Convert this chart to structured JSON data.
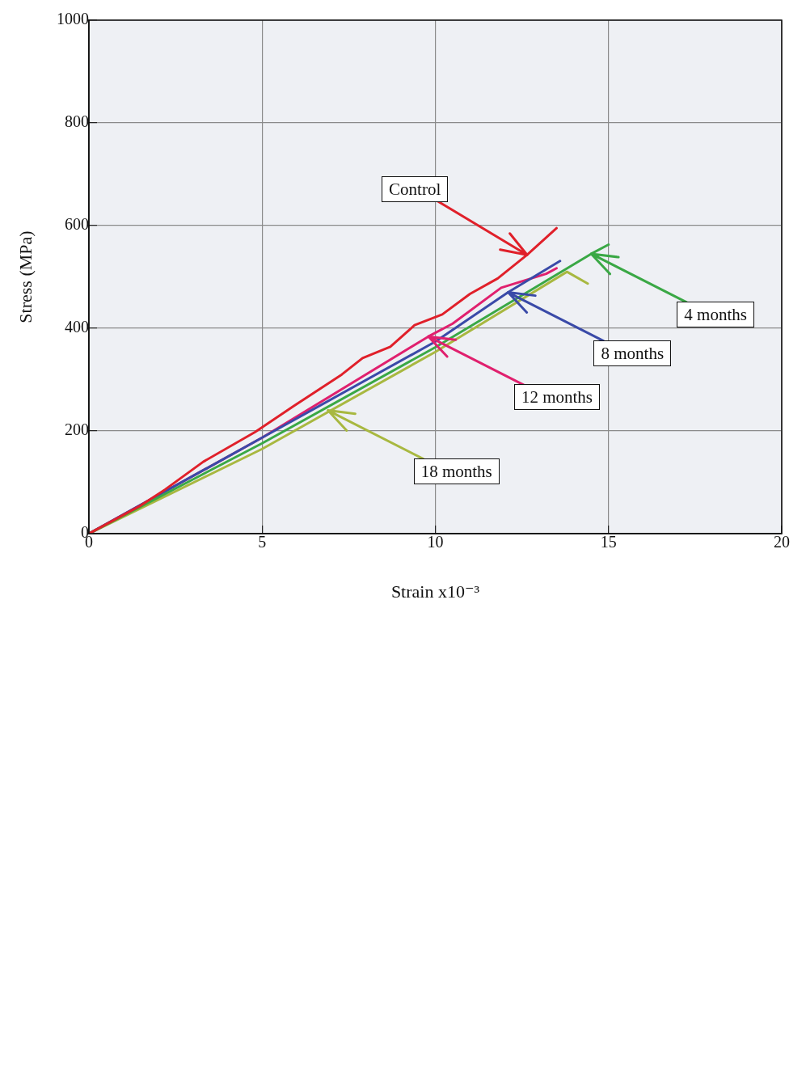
{
  "chart_data": {
    "type": "line",
    "xlabel": "Strain x10⁻³",
    "ylabel": "Stress (MPa)",
    "xlim": [
      0,
      20
    ],
    "xticks": [
      0,
      5,
      10,
      15,
      20
    ],
    "ylim": [
      0,
      1000
    ],
    "yticks": [
      0,
      200,
      400,
      600,
      800,
      1000
    ],
    "grid": true,
    "legend": false,
    "marker": "none",
    "series": [
      {
        "color": "#e0202a",
        "x": [
          0,
          1.5,
          2.2,
          3.3,
          4.8,
          5.9,
          7.3,
          7.9,
          8.7,
          9.4,
          10.2,
          11.0,
          11.8,
          12.65,
          13.5
        ],
        "values": [
          0,
          55,
          86,
          140,
          198,
          248,
          310,
          342,
          364,
          406,
          427,
          467,
          497,
          543,
          595
        ]
      },
      {
        "color": "#3aa845",
        "x": [
          0,
          5,
          10,
          14.5,
          15.0
        ],
        "values": [
          0,
          176,
          363,
          545,
          563
        ]
      },
      {
        "color": "#3a4aa8",
        "x": [
          0,
          5,
          10,
          12.1,
          13.6
        ],
        "values": [
          0,
          187,
          374,
          470,
          531
        ]
      },
      {
        "color": "#e0206e",
        "x": [
          0,
          5,
          9.8,
          10.5,
          11.9,
          13.2,
          13.5
        ],
        "values": [
          0,
          187,
          384,
          409,
          479,
          506,
          517
        ]
      },
      {
        "color": "#a8b840",
        "x": [
          0,
          5,
          10,
          13.8,
          14.4
        ],
        "values": [
          0,
          165,
          354,
          510,
          487
        ]
      }
    ],
    "annotations": [
      {
        "text": "Control",
        "x": 12.65,
        "y": 543
      },
      {
        "text": "4 months",
        "x": 14.5,
        "y": 545
      },
      {
        "text": "8 months",
        "x": 12.1,
        "y": 470
      },
      {
        "text": "12 months",
        "x": 9.8,
        "y": 384
      },
      {
        "text": "18 months",
        "x": 6.9,
        "y": 240
      }
    ]
  }
}
